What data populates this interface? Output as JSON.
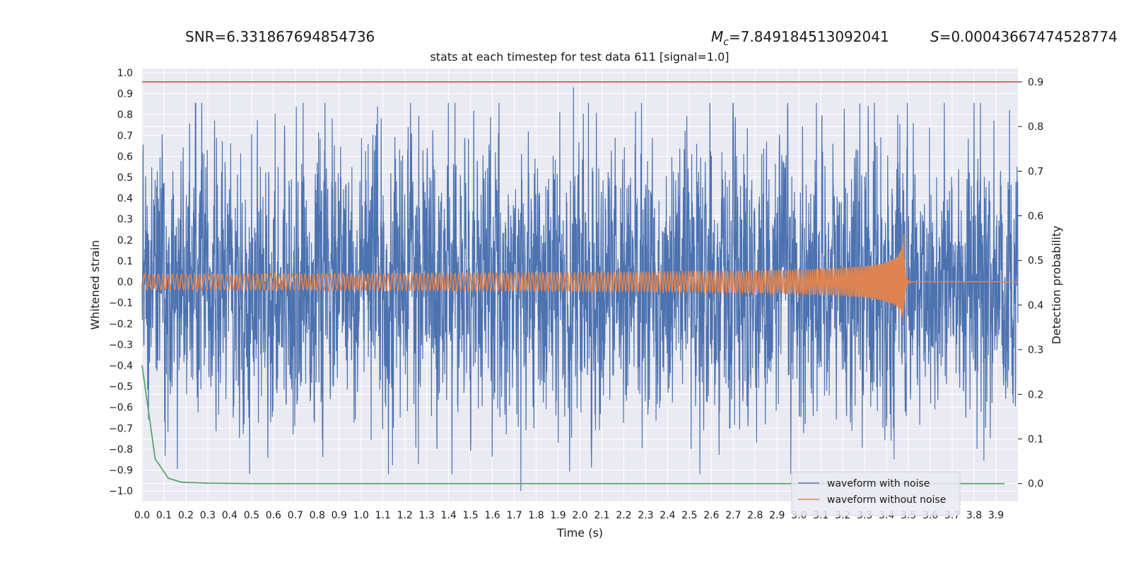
{
  "header": {
    "snr_text": "SNR=6.331867694854736",
    "mc_text": "=7.849184513092041",
    "s_text": "=0.00043667474528774",
    "mc_symbol": "M",
    "mc_sub": "c",
    "s_symbol": "S"
  },
  "chart_data": {
    "type": "line",
    "title": "stats at each timestep for test data 611 [signal=1.0]",
    "xlabel": "Time (s)",
    "ylabel_left": "Whitened strain",
    "ylabel_right": "Detection probability",
    "xlim": [
      0.0,
      4.0
    ],
    "ylim_left": [
      -1.05,
      1.02
    ],
    "ylim_right": [
      -0.04,
      0.93
    ],
    "x_ticks": [
      "0.0",
      "0.1",
      "0.2",
      "0.3",
      "0.4",
      "0.5",
      "0.6",
      "0.7",
      "0.8",
      "0.9",
      "1.0",
      "1.1",
      "1.2",
      "1.3",
      "1.4",
      "1.5",
      "1.6",
      "1.7",
      "1.8",
      "1.9",
      "2.0",
      "2.1",
      "2.2",
      "2.3",
      "2.4",
      "2.5",
      "2.6",
      "2.7",
      "2.8",
      "2.9",
      "3.0",
      "3.1",
      "3.2",
      "3.3",
      "3.4",
      "3.5",
      "3.6",
      "3.7",
      "3.8",
      "3.9"
    ],
    "y_ticks_left": [
      "1.0",
      "0.9",
      "0.8",
      "0.7",
      "0.6",
      "0.5",
      "0.4",
      "0.3",
      "0.2",
      "0.1",
      "0.0",
      "-0.1",
      "-0.2",
      "-0.3",
      "-0.4",
      "-0.5",
      "-0.6",
      "-0.7",
      "-0.8",
      "-0.9",
      "-1.0"
    ],
    "y_ticks_right": [
      "0.9",
      "0.8",
      "0.7",
      "0.6",
      "0.5",
      "0.4",
      "0.3",
      "0.2",
      "0.1",
      "0.0"
    ],
    "threshold": {
      "value": 0.9,
      "color": "#c44e52"
    },
    "grid": true,
    "legend_position": "bottom-right",
    "series": [
      {
        "name": "waveform with noise",
        "axis": "left",
        "color": "#4c72b0",
        "style": "noise",
        "std": 0.3,
        "max_peak": 0.93,
        "min_peak": -1.0
      },
      {
        "name": "waveform without noise",
        "axis": "left",
        "color": "#dd8452",
        "style": "chirp",
        "merger_time": 3.48,
        "peak_amplitude": 0.24,
        "initial_amplitude": 0.02
      },
      {
        "name": "",
        "axis": "right",
        "color": "#55a868",
        "style": "line",
        "x": [
          0.0,
          0.06,
          0.12,
          0.18,
          0.3,
          0.5,
          1.0,
          2.0,
          3.0,
          3.94
        ],
        "y": [
          0.265,
          0.055,
          0.012,
          0.003,
          0.001,
          0.0,
          0.0,
          0.0,
          0.0,
          0.0
        ]
      }
    ]
  }
}
